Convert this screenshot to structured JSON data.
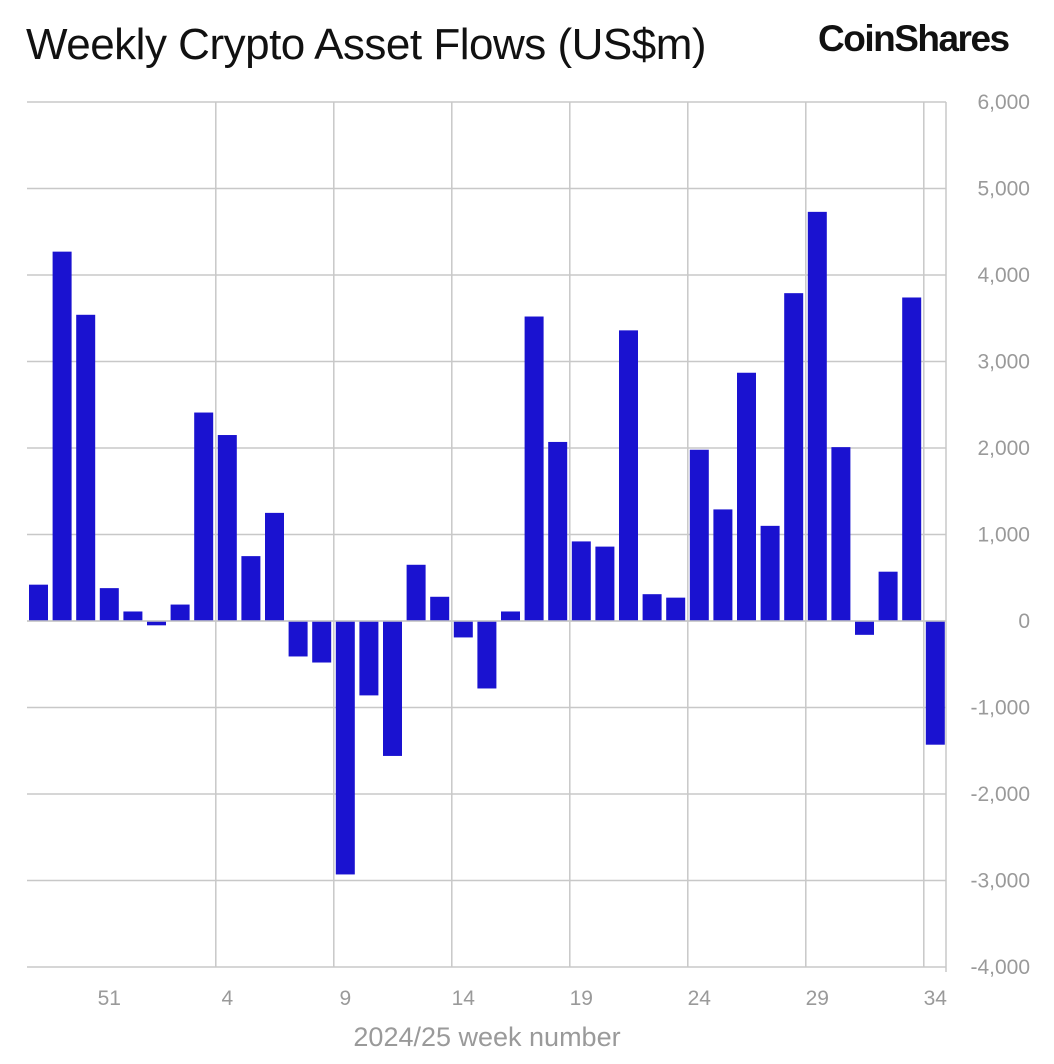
{
  "header": {
    "title": "Weekly Crypto Asset Flows (US$m)",
    "brand": "CoinShares"
  },
  "colors": {
    "bar": "#1a12d0",
    "grid": "#c8c8c8",
    "axis_text": "#9a9a9a"
  },
  "chart_data": {
    "type": "bar",
    "title": "Weekly Crypto Asset Flows (US$m)",
    "xlabel": "2024/25 week number",
    "ylabel": "",
    "ylim": [
      -4000,
      6000
    ],
    "ytick_values": [
      -4000,
      -3000,
      -2000,
      -1000,
      0,
      1000,
      2000,
      3000,
      4000,
      5000,
      6000
    ],
    "ytick_labels": [
      "-4,000",
      "-3,000",
      "-2,000",
      "-1,000",
      "0",
      "1,000",
      "2,000",
      "3,000",
      "4,000",
      "5,000",
      "6,000"
    ],
    "y_axis_side": "right",
    "categories": [
      "48",
      "49",
      "50",
      "51",
      "52",
      "1",
      "2",
      "3",
      "4",
      "5",
      "6",
      "7",
      "8",
      "9",
      "10",
      "11",
      "12",
      "13",
      "14",
      "15",
      "16",
      "17",
      "18",
      "19",
      "20",
      "21",
      "22",
      "23",
      "24",
      "25",
      "26",
      "27",
      "28",
      "29",
      "30",
      "31",
      "32",
      "33",
      "34"
    ],
    "values": [
      420,
      4270,
      3540,
      380,
      110,
      -50,
      190,
      2410,
      2150,
      750,
      1250,
      -410,
      -480,
      -2930,
      -860,
      -1560,
      650,
      280,
      -190,
      -780,
      110,
      3520,
      2070,
      920,
      860,
      3360,
      310,
      270,
      1980,
      1290,
      2870,
      1100,
      3790,
      4730,
      2010,
      -160,
      570,
      3740,
      -1430
    ],
    "xtick_labels": [
      "51",
      "4",
      "9",
      "14",
      "19",
      "24",
      "29",
      "34"
    ],
    "grid": true,
    "legend": "none"
  }
}
